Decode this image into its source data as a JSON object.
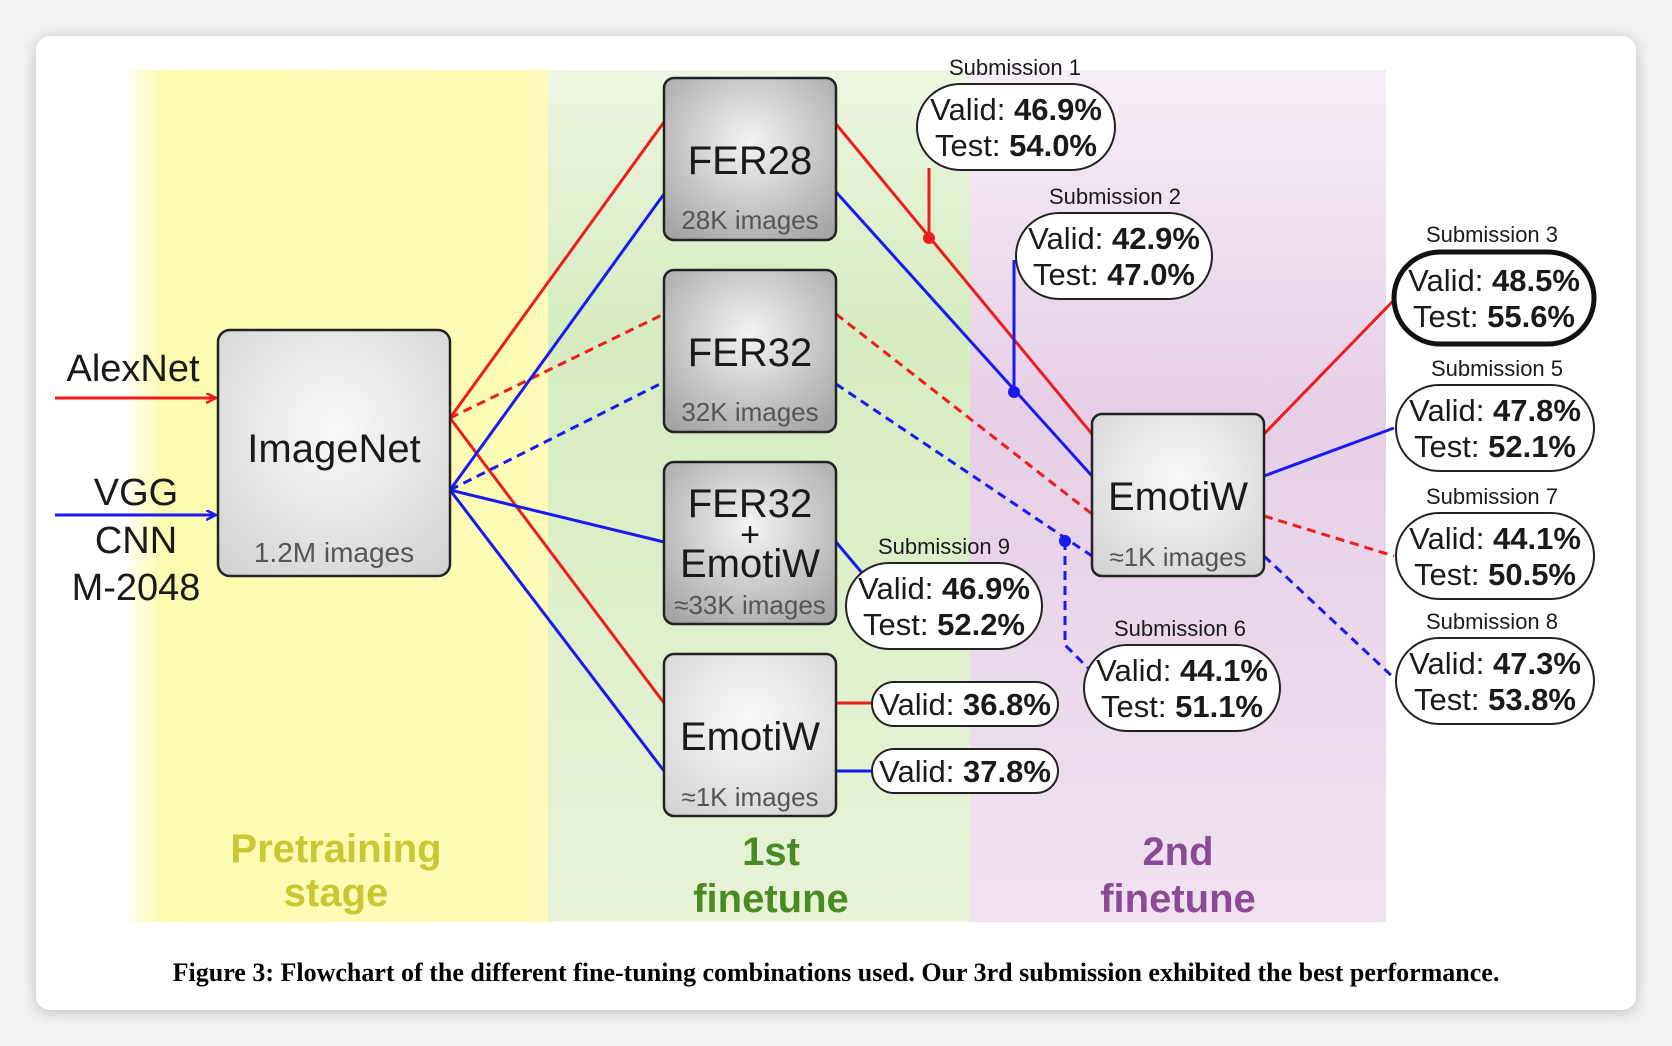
{
  "inputs": {
    "alexnet": "AlexNet",
    "vgg_line1": "VGG",
    "vgg_line2": "CNN",
    "vgg_line3": "M-2048"
  },
  "nodes": {
    "imagenet": {
      "title": "ImageNet",
      "sub": "1.2M images"
    },
    "fer28": {
      "title": "FER28",
      "sub": "28K images"
    },
    "fer32": {
      "title": "FER32",
      "sub": "32K images"
    },
    "fer32_emotiw": {
      "line1": "FER32",
      "plus": "+",
      "line2": "EmotiW",
      "sub": "≈33K images"
    },
    "emotiw_first": {
      "title": "EmotiW",
      "sub": "≈1K images"
    },
    "emotiw_second": {
      "title": "EmotiW",
      "sub": "≈1K images"
    }
  },
  "submissions": {
    "s1": {
      "label": "Submission 1",
      "valid_label": "Valid:",
      "valid": "46.9%",
      "test_label": "Test:",
      "test": "54.0%"
    },
    "s2": {
      "label": "Submission 2",
      "valid_label": "Valid:",
      "valid": "42.9%",
      "test_label": "Test:",
      "test": "47.0%"
    },
    "s3": {
      "label": "Submission 3",
      "valid_label": "Valid:",
      "valid": "48.5%",
      "test_label": "Test:",
      "test": "55.6%"
    },
    "s5": {
      "label": "Submission 5",
      "valid_label": "Valid:",
      "valid": "47.8%",
      "test_label": "Test:",
      "test": "52.1%"
    },
    "s7": {
      "label": "Submission 7",
      "valid_label": "Valid:",
      "valid": "44.1%",
      "test_label": "Test:",
      "test": "50.5%"
    },
    "s8": {
      "label": "Submission 8",
      "valid_label": "Valid:",
      "valid": "47.3%",
      "test_label": "Test:",
      "test": "53.8%"
    },
    "s9": {
      "label": "Submission 9",
      "valid_label": "Valid:",
      "valid": "46.9%",
      "test_label": "Test:",
      "test": "52.2%"
    },
    "s6": {
      "label": "Submission 6",
      "valid_label": "Valid:",
      "valid": "44.1%",
      "test_label": "Test:",
      "test": "51.1%"
    },
    "v_red": {
      "valid_label": "Valid:",
      "valid": "36.8%"
    },
    "v_blue": {
      "valid_label": "Valid:",
      "valid": "37.8%"
    }
  },
  "stages": {
    "pretrain_line1": "Pretraining",
    "pretrain_line2": "stage",
    "first_line1": "1st",
    "first_line2": "finetune",
    "second_line1": "2nd",
    "second_line2": "finetune"
  },
  "caption": "Figure 3: Flowchart of the different fine-tuning combinations used. Our 3rd submission exhibited the best performance.",
  "colors": {
    "alexnet": "#ee1c1c",
    "vgg": "#1a1aee",
    "pretrain_text": "#c8c832",
    "first_text": "#4a8a22",
    "second_text": "#8a4a96"
  }
}
